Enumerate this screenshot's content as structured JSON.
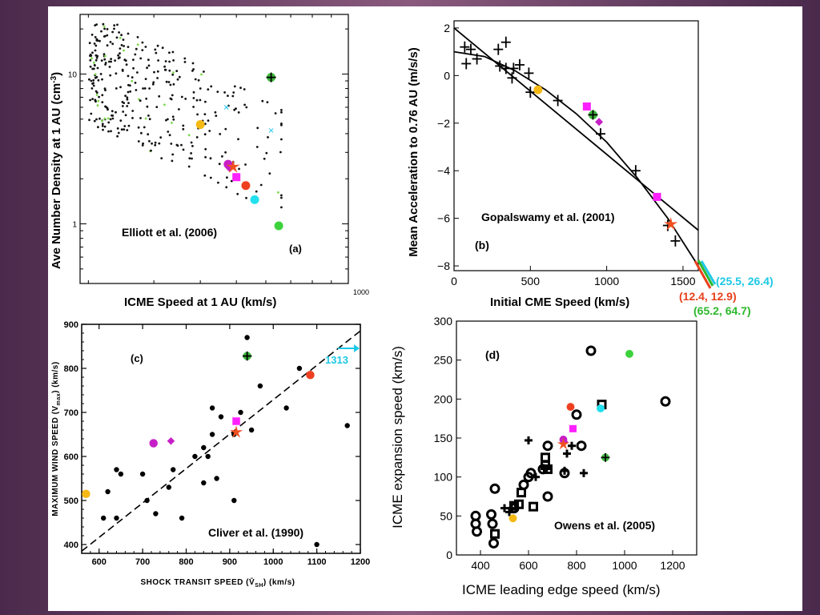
{
  "chart_data": [
    {
      "id": "a",
      "type": "scatter",
      "panel_label": "(a)",
      "citation": "Elliott et al. (2006)",
      "xlabel": "ICME Speed at 1 AU (km/s)",
      "ylabel": "Ave Number Density at 1 AU (cm",
      "ylabel_sup": "-3",
      "ylabel_close": ")",
      "x_scale": "log",
      "xlim": [
        190,
        1000
      ],
      "y_scale": "log",
      "ylim": [
        0.4,
        25
      ],
      "ytick_labels": [
        {
          "v": 10,
          "label": "10"
        },
        {
          "v": 1,
          "label": "1"
        }
      ],
      "xtick_labels": [
        {
          "v": 1000,
          "label": "1000"
        }
      ],
      "markers": [
        {
          "x": 400,
          "y": 4.6,
          "shape": "circle",
          "color": "#f5b915"
        },
        {
          "x": 475,
          "y": 2.5,
          "shape": "circle",
          "color": "#c71fc7"
        },
        {
          "x": 480,
          "y": 2.35,
          "shape": "diamond",
          "color": "#c71fc7"
        },
        {
          "x": 490,
          "y": 2.4,
          "shape": "star",
          "color": "#f05020"
        },
        {
          "x": 500,
          "y": 2.05,
          "shape": "square",
          "color": "#ff20ff"
        },
        {
          "x": 530,
          "y": 1.8,
          "shape": "circle",
          "color": "#ee4020"
        },
        {
          "x": 560,
          "y": 1.45,
          "shape": "circle",
          "color": "#22e0ee"
        },
        {
          "x": 620,
          "y": 9.5,
          "shape": "plus-circle",
          "color": "#3cb83c"
        },
        {
          "x": 650,
          "y": 0.97,
          "shape": "circle",
          "color": "#3cd23c"
        }
      ]
    },
    {
      "id": "b",
      "type": "scatter",
      "panel_label": "(b)",
      "citation": "Gopalswamy et al. (2001)",
      "xlabel": "Initial CME Speed (km/s)",
      "ylabel": "Mean Acceleration to 0.76 AU (m/s/s)",
      "xlim": [
        0,
        1600
      ],
      "ylim": [
        -8.2,
        2.3
      ],
      "xticks": [
        0,
        500,
        1000,
        1500
      ],
      "yticks": [
        2,
        0,
        -2,
        -4,
        -6,
        -8
      ],
      "fit_lines": [
        {
          "x": [
            0,
            1600
          ],
          "y": [
            2.0,
            -6.5
          ]
        },
        {
          "x": [
            0,
            200,
            400,
            600,
            800,
            1000,
            1200,
            1400,
            1600
          ],
          "y": [
            1.0,
            0.8,
            0.2,
            -0.6,
            -1.6,
            -2.8,
            -4.3,
            -6.0,
            -8.0
          ]
        }
      ],
      "data_crosses": [
        [
          70,
          1.2
        ],
        [
          80,
          0.5
        ],
        [
          110,
          1.1
        ],
        [
          150,
          0.7
        ],
        [
          290,
          1.1
        ],
        [
          300,
          0.4
        ],
        [
          340,
          1.4
        ],
        [
          340,
          0.3
        ],
        [
          380,
          -0.1
        ],
        [
          390,
          0.3
        ],
        [
          430,
          0.45
        ],
        [
          490,
          0.1
        ],
        [
          500,
          -0.7
        ],
        [
          680,
          -1.05
        ],
        [
          960,
          -2.45
        ],
        [
          1190,
          -4.0
        ],
        [
          1400,
          -6.3
        ],
        [
          1450,
          -6.95
        ]
      ],
      "markers": [
        {
          "x": 550,
          "y": -0.6,
          "shape": "circle",
          "color": "#f5b915"
        },
        {
          "x": 870,
          "y": -1.3,
          "shape": "square",
          "color": "#ff20ff"
        },
        {
          "x": 910,
          "y": -1.65,
          "shape": "plus-circle",
          "color": "#3cb83c"
        },
        {
          "x": 950,
          "y": -1.95,
          "shape": "diamond",
          "color": "#c71fc7"
        },
        {
          "x": 1330,
          "y": -5.1,
          "shape": "square",
          "color": "#ff20ff"
        },
        {
          "x": 1420,
          "y": -6.25,
          "shape": "star",
          "color": "#f05020"
        }
      ],
      "offscale_notes": [
        {
          "text": "(25.5, 26.4)",
          "color": "#1ec8e6"
        },
        {
          "text": "(12.4, 12.9)",
          "color": "#e8401c"
        },
        {
          "text": "(65.2, 64.7)",
          "color": "#2cb82c"
        }
      ]
    },
    {
      "id": "c",
      "type": "scatter",
      "panel_label": "(c)",
      "citation": "Cliver et al. (1990)",
      "xlabel": "SHOCK TRANSIT SPEED (V̄",
      "xlabel_sub": "SH",
      "xlabel_close": ")  (km/s)",
      "ylabel": "MAXIMUM WIND SPEED (V",
      "ylabel_sub": "max",
      "ylabel_close": ")  (km/s)",
      "xlim": [
        560,
        1200
      ],
      "ylim": [
        380,
        900
      ],
      "xticks": [
        600,
        700,
        800,
        900,
        1000,
        1100,
        1200
      ],
      "yticks": [
        400,
        500,
        600,
        700,
        800,
        900
      ],
      "fit_line": {
        "x": [
          560,
          1200
        ],
        "y": [
          385,
          885
        ]
      },
      "data_points": [
        [
          610,
          460
        ],
        [
          620,
          520
        ],
        [
          640,
          570
        ],
        [
          640,
          460
        ],
        [
          650,
          560
        ],
        [
          700,
          560
        ],
        [
          710,
          500
        ],
        [
          730,
          470
        ],
        [
          760,
          530
        ],
        [
          770,
          570
        ],
        [
          790,
          460
        ],
        [
          820,
          600
        ],
        [
          840,
          540
        ],
        [
          840,
          620
        ],
        [
          850,
          600
        ],
        [
          860,
          710
        ],
        [
          860,
          650
        ],
        [
          870,
          550
        ],
        [
          880,
          690
        ],
        [
          910,
          650
        ],
        [
          910,
          500
        ],
        [
          925,
          700
        ],
        [
          940,
          870
        ],
        [
          950,
          660
        ],
        [
          970,
          760
        ],
        [
          1030,
          710
        ],
        [
          1060,
          800
        ],
        [
          1100,
          400
        ],
        [
          1170,
          670
        ]
      ],
      "markers": [
        {
          "x": 570,
          "y": 515,
          "shape": "circle",
          "color": "#f5b915"
        },
        {
          "x": 725,
          "y": 630,
          "shape": "circle",
          "color": "#c71fc7"
        },
        {
          "x": 765,
          "y": 635,
          "shape": "diamond",
          "color": "#c71fc7"
        },
        {
          "x": 915,
          "y": 680,
          "shape": "square",
          "color": "#ff20ff"
        },
        {
          "x": 915,
          "y": 655,
          "shape": "star",
          "color": "#f05020"
        },
        {
          "x": 940,
          "y": 828,
          "shape": "plus-circle",
          "color": "#3cb83c"
        },
        {
          "x": 1085,
          "y": 785,
          "shape": "circle",
          "color": "#ee4020"
        }
      ],
      "offscale_note": {
        "text": "1313",
        "color": "#1ec8e6"
      }
    },
    {
      "id": "d",
      "type": "scatter",
      "panel_label": "(d)",
      "citation": "Owens et al. (2005)",
      "xlabel": "ICME leading edge speed (km/s)",
      "ylabel": "ICME expansion speed (km/s)",
      "xlim": [
        300,
        1300
      ],
      "ylim": [
        0,
        300
      ],
      "xticks": [
        400,
        600,
        800,
        1000,
        1200
      ],
      "yticks": [
        0,
        50,
        100,
        150,
        200,
        250,
        300
      ],
      "rings": [
        [
          380,
          50
        ],
        [
          380,
          40
        ],
        [
          385,
          30
        ],
        [
          445,
          52
        ],
        [
          450,
          40
        ],
        [
          455,
          15
        ],
        [
          460,
          85
        ],
        [
          540,
          60
        ],
        [
          600,
          100
        ],
        [
          610,
          105
        ],
        [
          580,
          90
        ],
        [
          680,
          75
        ],
        [
          660,
          110
        ],
        [
          680,
          140
        ],
        [
          750,
          105
        ],
        [
          800,
          180
        ],
        [
          820,
          140
        ],
        [
          860,
          262
        ],
        [
          1170,
          197
        ]
      ],
      "squares": [
        [
          460,
          27
        ],
        [
          540,
          63
        ],
        [
          560,
          65
        ],
        [
          570,
          80
        ],
        [
          620,
          62
        ],
        [
          670,
          125
        ],
        [
          670,
          115
        ],
        [
          680,
          110
        ],
        [
          905,
          193
        ]
      ],
      "pluses": [
        [
          500,
          60
        ],
        [
          520,
          55
        ],
        [
          530,
          60
        ],
        [
          600,
          147
        ],
        [
          630,
          100
        ],
        [
          750,
          108
        ],
        [
          760,
          130
        ],
        [
          780,
          140
        ],
        [
          830,
          105
        ]
      ],
      "markers": [
        {
          "x": 535,
          "y": 47,
          "shape": "circle",
          "color": "#f5b915"
        },
        {
          "x": 745,
          "y": 148,
          "shape": "circle",
          "color": "#c71fc7"
        },
        {
          "x": 750,
          "y": 145,
          "shape": "diamond",
          "color": "#c71fc7"
        },
        {
          "x": 745,
          "y": 142,
          "shape": "star",
          "color": "#f05020"
        },
        {
          "x": 785,
          "y": 162,
          "shape": "square",
          "color": "#ff20ff"
        },
        {
          "x": 775,
          "y": 190,
          "shape": "circle",
          "color": "#ee4020"
        },
        {
          "x": 900,
          "y": 188,
          "shape": "circle",
          "color": "#22e0ee"
        },
        {
          "x": 920,
          "y": 125,
          "shape": "plus-circle",
          "color": "#3cb83c"
        },
        {
          "x": 1020,
          "y": 258,
          "shape": "circle",
          "color": "#3cd23c"
        }
      ]
    }
  ]
}
